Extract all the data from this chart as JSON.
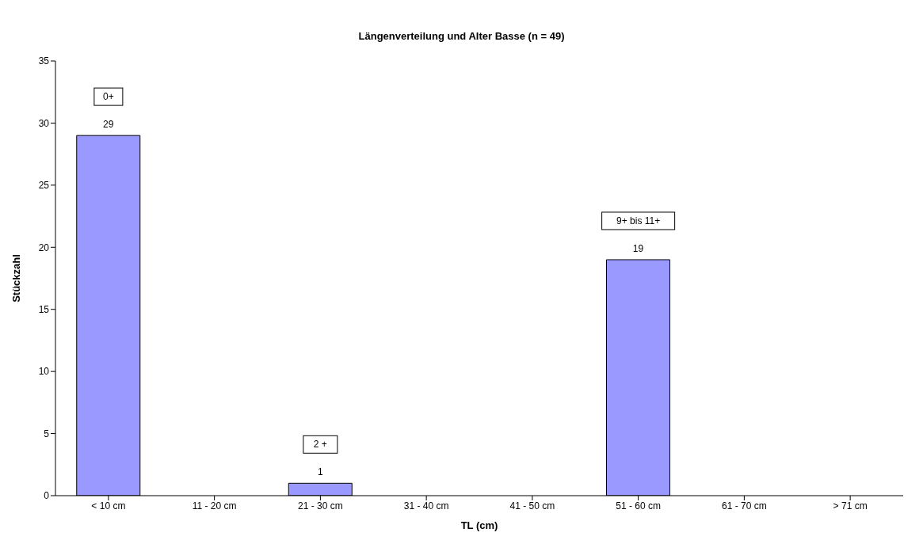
{
  "chart_data": {
    "type": "bar",
    "title": "Längenverteilung und Alter Basse (n = 49)",
    "xlabel": "TL (cm)",
    "ylabel": "Stückzahl",
    "categories": [
      "< 10 cm",
      "11 - 20 cm",
      "21 - 30 cm",
      "31 - 40 cm",
      "41 - 50 cm",
      "51 - 60 cm",
      "61 - 70 cm",
      "> 71 cm"
    ],
    "values": [
      29,
      0,
      1,
      0,
      0,
      19,
      0,
      0
    ],
    "value_labels": [
      "29",
      null,
      "1",
      null,
      null,
      "19",
      null,
      null
    ],
    "color": "#9999ff",
    "ylim": [
      0,
      35
    ],
    "yticks": [
      0,
      5,
      10,
      15,
      20,
      25,
      30,
      35
    ],
    "grid": false,
    "legend": false,
    "annotations": [
      "0+",
      "2 +",
      "9+ bis 11+"
    ]
  }
}
